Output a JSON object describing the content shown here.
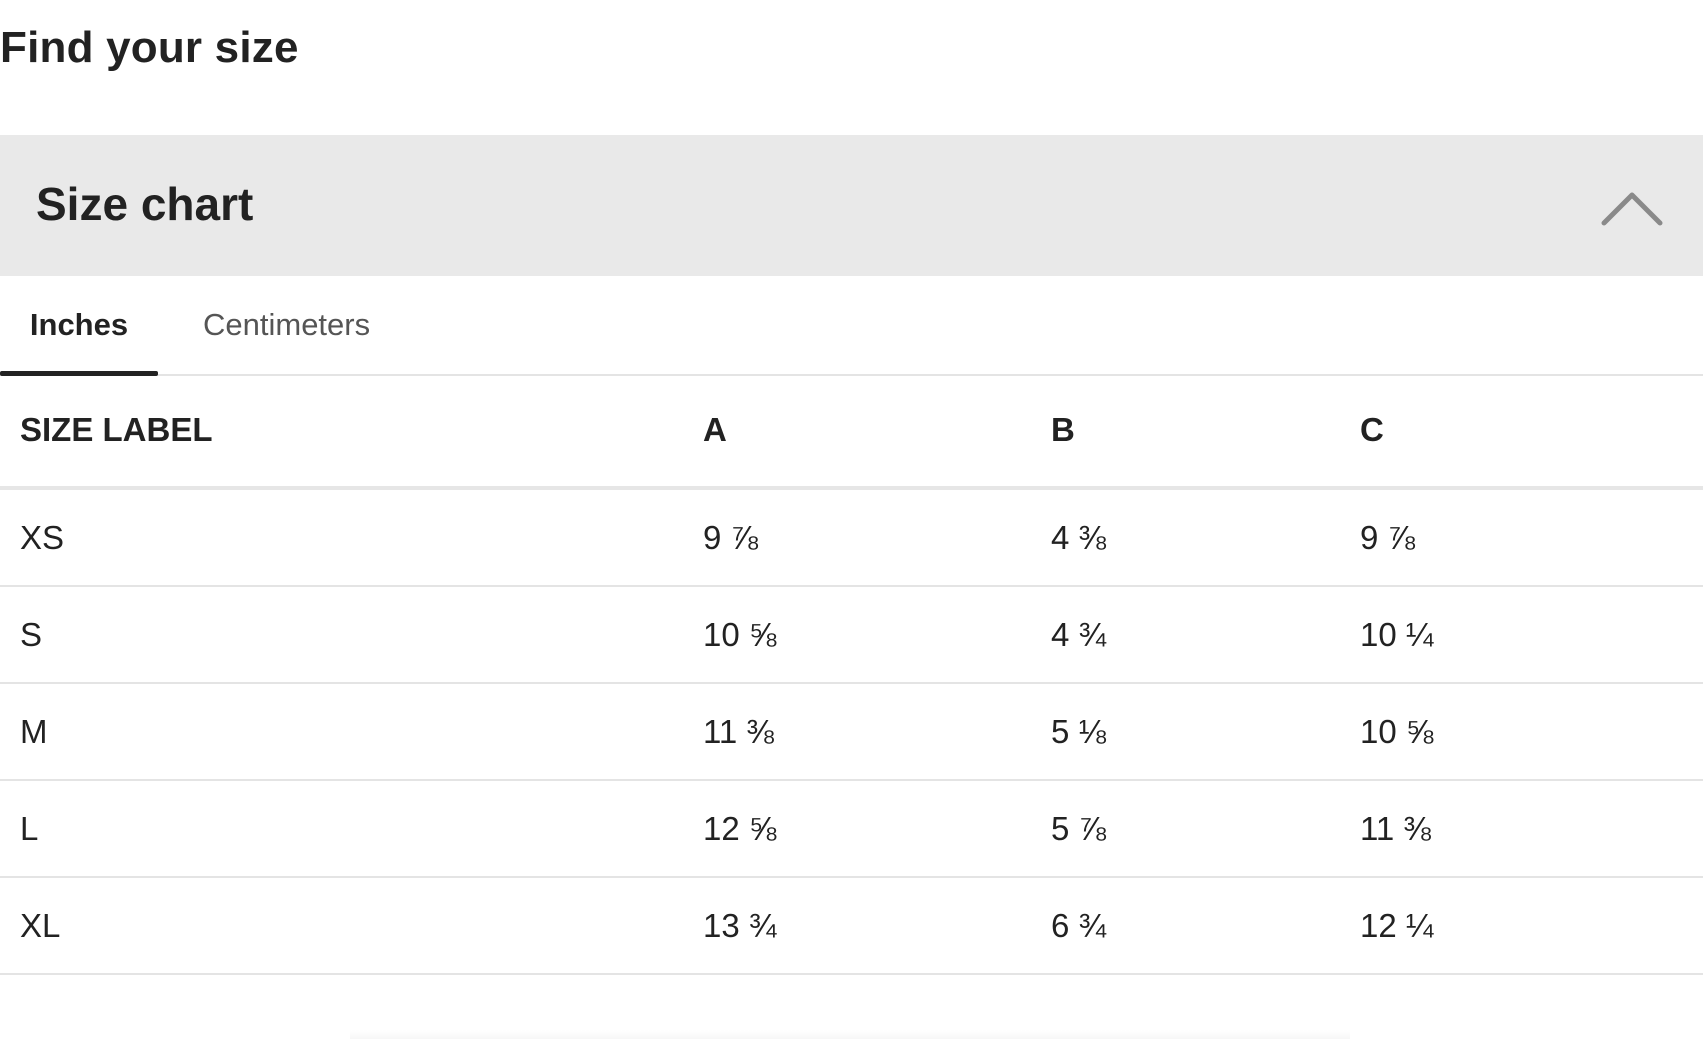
{
  "page": {
    "title": "Find your size"
  },
  "accordion": {
    "title": "Size chart",
    "toggle_icon": "chevron-up-icon",
    "expanded": true,
    "background_color": "#e9e9e9"
  },
  "tabs": [
    {
      "label": "Inches",
      "selected": true
    },
    {
      "label": "Centimeters",
      "selected": false
    }
  ],
  "table": {
    "headers": [
      "SIZE LABEL",
      "A",
      "B",
      "C"
    ],
    "rows": [
      [
        "XS",
        "9 ⅞",
        "4 ⅜",
        "9 ⅞"
      ],
      [
        "S",
        "10 ⅝",
        "4 ¾",
        "10 ¼"
      ],
      [
        "M",
        "11 ⅜",
        "5 ⅛",
        "10 ⅝"
      ],
      [
        "L",
        "12 ⅝",
        "5 ⅞",
        "11 ⅜"
      ],
      [
        "XL",
        "13 ¾",
        "6 ¾",
        "12 ¼"
      ]
    ]
  }
}
